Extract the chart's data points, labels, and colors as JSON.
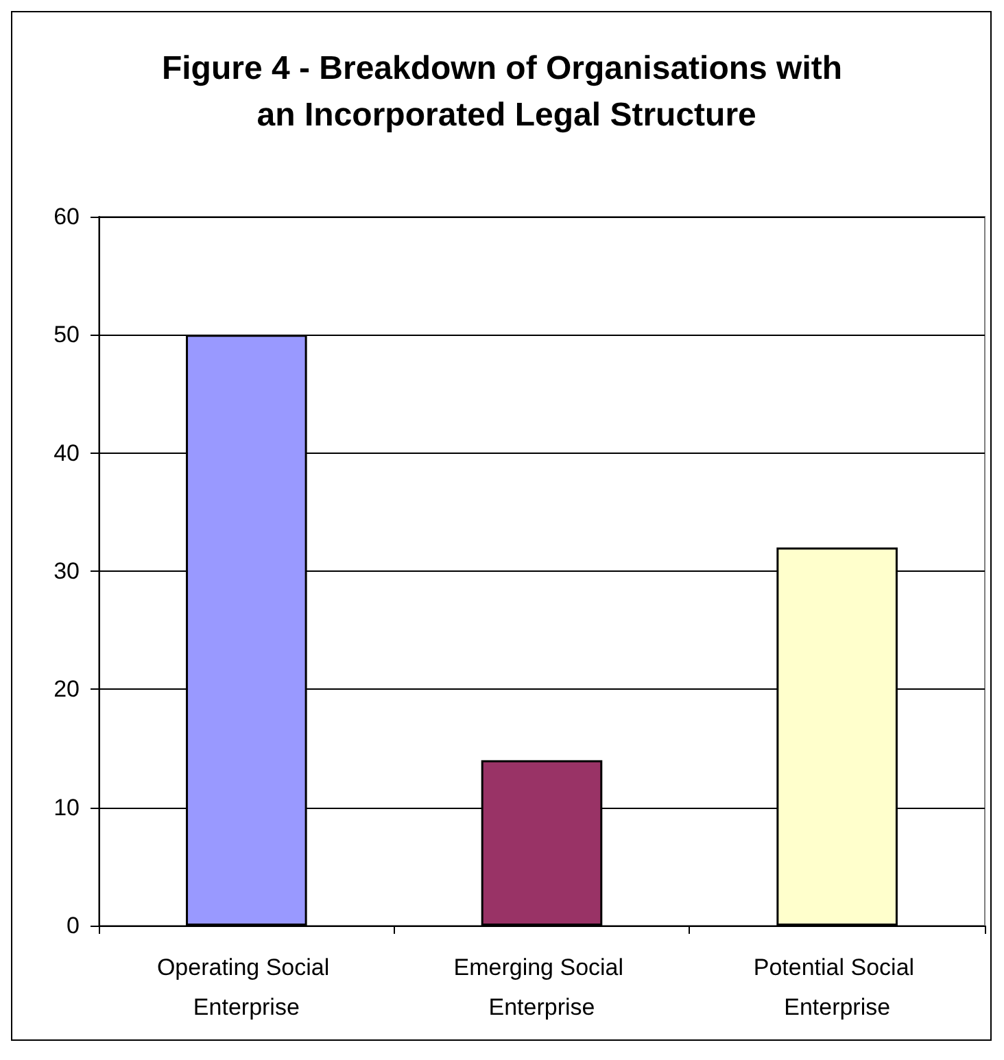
{
  "chart_data": {
    "type": "bar",
    "title": "Figure 4 - Breakdown of Organisations with an Incorporated Legal Structure",
    "categories": [
      "Operating Social Enterprise",
      "Emerging Social Enterprise",
      "Potential Social Enterprise"
    ],
    "values": [
      50,
      14,
      32
    ],
    "colors": [
      "#9999ff",
      "#993366",
      "#ffffcc"
    ],
    "ylim": [
      0,
      60
    ],
    "yticks": [
      0,
      10,
      20,
      30,
      40,
      50,
      60
    ],
    "grid": "y"
  }
}
